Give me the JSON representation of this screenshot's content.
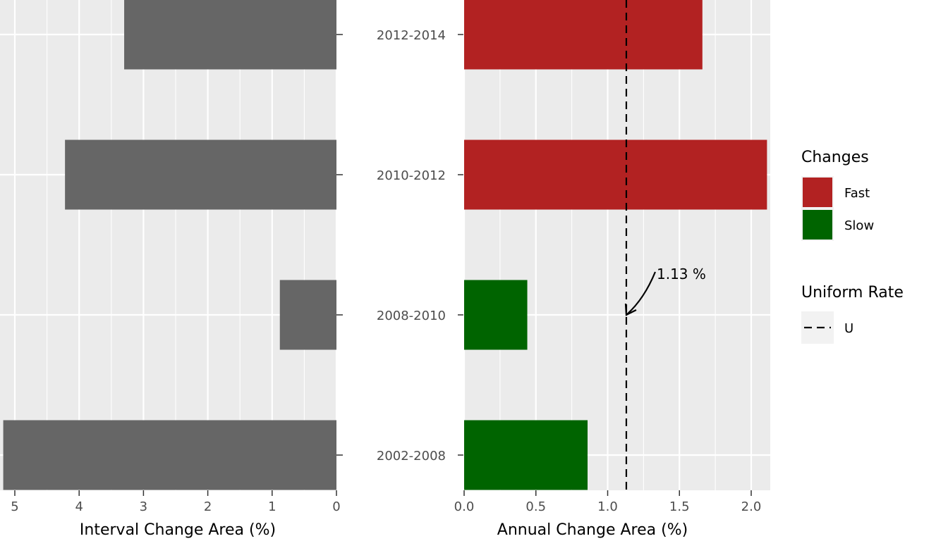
{
  "chart_data": [
    {
      "type": "bar",
      "orientation": "horizontal",
      "x_reversed": true,
      "categories": [
        "2002-2008",
        "2008-2010",
        "2010-2012",
        "2012-2014"
      ],
      "values": [
        5.18,
        0.88,
        4.22,
        3.3
      ],
      "xlabel": "Interval Change Area (%)",
      "xlim": [
        0,
        5.2
      ],
      "xticks": [
        0,
        1,
        2,
        3,
        4,
        5
      ],
      "xtick_labels": [
        "0",
        "1",
        "2",
        "3",
        "4",
        "5"
      ],
      "bar_color": "#666666",
      "panel_color": "#ebebeb",
      "grid": true
    },
    {
      "type": "bar",
      "orientation": "horizontal",
      "categories": [
        "2002-2008",
        "2008-2010",
        "2010-2012",
        "2012-2014"
      ],
      "values": [
        0.86,
        0.44,
        2.11,
        1.66
      ],
      "groups": [
        "Slow",
        "Slow",
        "Fast",
        "Fast"
      ],
      "xlabel": "Annual Change Area (%)",
      "xlim": [
        0,
        2.12
      ],
      "xticks": [
        0,
        0.5,
        1,
        1.5,
        2
      ],
      "xtick_labels": [
        "0.0",
        "0.5",
        "1.0",
        "1.5",
        "2.0"
      ],
      "uniform_rate": 1.13,
      "annotation": "1.13 %",
      "panel_color": "#ebebeb",
      "grid": true
    }
  ],
  "category_labels": [
    "2002-2008",
    "2008-2010",
    "2010-2012",
    "2012-2014"
  ],
  "legend": {
    "changes_title": "Changes",
    "changes_items": [
      {
        "label": "Fast",
        "color": "#b22222"
      },
      {
        "label": "Slow",
        "color": "#006400"
      }
    ],
    "uniform_title": "Uniform Rate",
    "uniform_label": "U",
    "placement": "right"
  }
}
